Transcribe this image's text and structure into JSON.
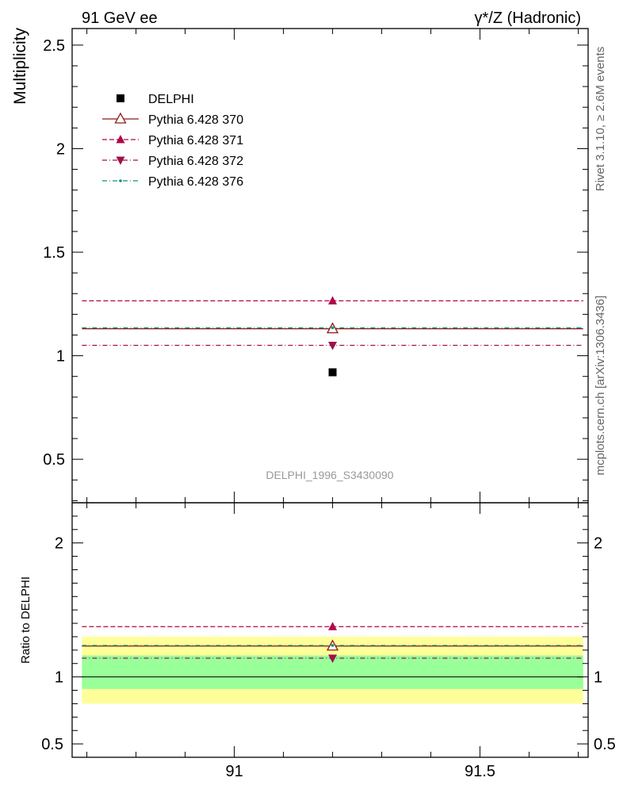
{
  "header": {
    "left_title": "91 GeV ee",
    "right_title": "γ*/Z (Hadronic)"
  },
  "side_text": {
    "rivet": "Rivet 3.1.10, ≥ 2.6M events",
    "mcplots": "mcplots.cern.ch [arXiv:1306.3436]"
  },
  "watermark": "DELPHI_1996_S3430090",
  "colors": {
    "data": "#000000",
    "pythia_370": "#8b1a1a",
    "pythia_371": "#b0064a",
    "pythia_372": "#a0104a",
    "pythia_376": "#10907a",
    "band_inner": "#99ff99",
    "band_outer": "#ffff99"
  },
  "chart_data": [
    {
      "type": "scatter",
      "panel": "main",
      "ylabel": "Multiplicity",
      "xlim": [
        90.67,
        91.72
      ],
      "ylim": [
        0.29,
        2.58
      ],
      "x_ticks": [
        "91",
        "91.5"
      ],
      "y_ticks": [
        "0.5",
        "1",
        "1.5",
        "2",
        "2.5"
      ],
      "x_bin": [
        90.69,
        91.71
      ],
      "x_center": 91.2,
      "legend_position": "top-left",
      "series": [
        {
          "name": "DELPHI",
          "values": [
            0.92
          ],
          "marker": "square-filled"
        },
        {
          "name": "Pythia 6.428 370",
          "values": [
            1.13
          ],
          "marker": "triangle-up-open",
          "line": "solid"
        },
        {
          "name": "Pythia 6.428 371",
          "values": [
            1.265
          ],
          "marker": "triangle-up-filled",
          "line": "dashed"
        },
        {
          "name": "Pythia 6.428 372",
          "values": [
            1.05
          ],
          "marker": "triangle-down-filled",
          "line": "dash-dot"
        },
        {
          "name": "Pythia 6.428 376",
          "values": [
            1.135
          ],
          "marker": "dot",
          "line": "dash-dot"
        }
      ]
    },
    {
      "type": "scatter",
      "panel": "ratio",
      "ylabel": "Ratio to DELPHI",
      "xlim": [
        90.67,
        91.72
      ],
      "ylim": [
        0.4,
        2.3
      ],
      "x_ticks": [
        "91",
        "91.5"
      ],
      "y_ticks": [
        "0.5",
        "1",
        "2"
      ],
      "reference": 1,
      "band_inner": [
        0.91,
        1.16
      ],
      "band_outer": [
        0.8,
        1.3
      ],
      "series": [
        {
          "name": "Pythia 6.428 370",
          "values": [
            1.23
          ]
        },
        {
          "name": "Pythia 6.428 371",
          "values": [
            1.375
          ]
        },
        {
          "name": "Pythia 6.428 372",
          "values": [
            1.14
          ]
        },
        {
          "name": "Pythia 6.428 376",
          "values": [
            1.235
          ]
        }
      ]
    }
  ]
}
